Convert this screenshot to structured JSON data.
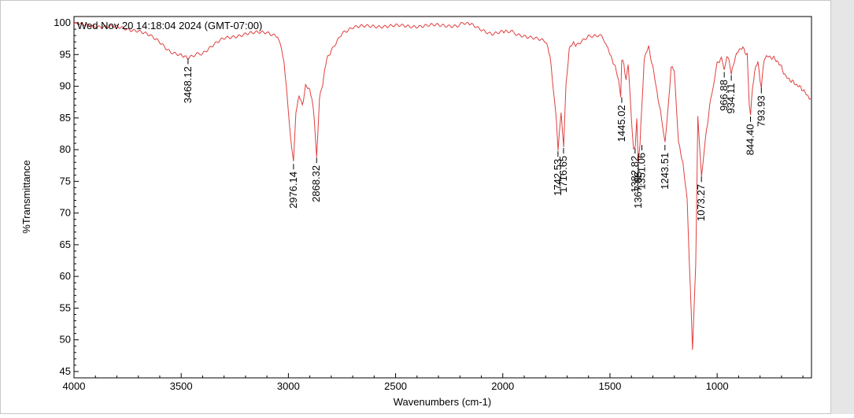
{
  "chart_data": {
    "type": "line",
    "title": "Wed Nov 20 14:18:04 2024 (GMT-07:00)",
    "xlabel": "Wavenumbers (cm-1)",
    "ylabel": "%Transmittance",
    "xlim": [
      4000,
      560
    ],
    "ylim": [
      44,
      101
    ],
    "x_reversed": true,
    "grid": false,
    "line_color": "#e04040",
    "x_ticks": [
      4000,
      3500,
      3000,
      2500,
      2000,
      1500,
      1000
    ],
    "y_ticks": [
      45,
      50,
      55,
      60,
      65,
      70,
      75,
      80,
      85,
      90,
      95,
      100
    ],
    "series": [
      {
        "x": [
          4000,
          3900,
          3800,
          3700,
          3650,
          3600,
          3550,
          3500,
          3468,
          3440,
          3400,
          3350,
          3300,
          3200,
          3100,
          3050,
          3020,
          3000,
          2990,
          2976,
          2965,
          2950,
          2935,
          2920,
          2900,
          2890,
          2880,
          2868,
          2855,
          2840,
          2820,
          2800,
          2750,
          2700,
          2600,
          2500,
          2400,
          2300,
          2200,
          2170,
          2150,
          2100,
          2050,
          2000,
          1980,
          1950,
          1900,
          1850,
          1800,
          1780,
          1760,
          1750,
          1742,
          1735,
          1728,
          1716,
          1705,
          1690,
          1670,
          1650,
          1600,
          1550,
          1520,
          1500,
          1480,
          1460,
          1450,
          1445,
          1435,
          1425,
          1415,
          1400,
          1390,
          1382,
          1375,
          1368,
          1360,
          1351,
          1340,
          1320,
          1300,
          1280,
          1260,
          1243,
          1230,
          1215,
          1200,
          1180,
          1160,
          1140,
          1125,
          1115,
          1100,
          1090,
          1085,
          1073,
          1060,
          1050,
          1030,
          1000,
          980,
          967,
          955,
          945,
          934,
          920,
          900,
          880,
          860,
          850,
          844,
          835,
          820,
          810,
          800,
          794,
          780,
          760,
          740,
          720,
          700,
          680,
          660,
          640,
          620,
          600,
          580,
          560
        ],
        "y": [
          99.8,
          99.5,
          99.3,
          98.8,
          98.0,
          97.0,
          95.5,
          94.8,
          94.6,
          94.8,
          95.3,
          96.5,
          97.5,
          98.3,
          98.5,
          98.0,
          94.0,
          86.0,
          82.0,
          78.0,
          86.0,
          88.5,
          87.0,
          90.0,
          89.5,
          88.0,
          85.0,
          79.0,
          88.0,
          90.5,
          94.5,
          95.5,
          98.5,
          99.3,
          99.5,
          99.5,
          99.5,
          99.6,
          99.6,
          100.2,
          99.7,
          99.0,
          98.3,
          98.5,
          98.9,
          98.4,
          98.0,
          97.5,
          97.0,
          95.0,
          88.0,
          85.0,
          80.0,
          83.0,
          86.0,
          80.5,
          90.0,
          96.0,
          96.8,
          96.5,
          98.0,
          98.1,
          97.0,
          95.0,
          93.5,
          91.0,
          88.5,
          94.0,
          93.5,
          91.0,
          93.5,
          85.0,
          80.0,
          80.5,
          85.0,
          78.0,
          81.0,
          87.0,
          94.5,
          96.2,
          93.0,
          89.0,
          85.0,
          81.0,
          86.0,
          93.0,
          92.5,
          81.0,
          78.0,
          72.0,
          58.0,
          48.5,
          62.0,
          85.0,
          82.0,
          76.0,
          80.0,
          83.0,
          88.0,
          93.5,
          94.5,
          92.5,
          95.0,
          94.0,
          92.0,
          94.0,
          95.8,
          96.0,
          95.0,
          87.0,
          85.5,
          90.0,
          93.0,
          94.0,
          91.0,
          90.0,
          94.5,
          94.7,
          94.5,
          94.0,
          93.0,
          91.5,
          91.0,
          90.5,
          90.0,
          89.5,
          88.5,
          88.0
        ]
      }
    ],
    "annotations": [
      {
        "label": "3468.12",
        "x": 3468.12,
        "y": 94.6
      },
      {
        "label": "2976.14",
        "x": 2976.14,
        "y": 78.0
      },
      {
        "label": "2868.32",
        "x": 2868.32,
        "y": 79.0
      },
      {
        "label": "1742.53",
        "x": 1742.53,
        "y": 80.0
      },
      {
        "label": "1716.65",
        "x": 1716.65,
        "y": 80.5
      },
      {
        "label": "1445.02",
        "x": 1445.02,
        "y": 88.5
      },
      {
        "label": "1382.82",
        "x": 1382.82,
        "y": 80.5
      },
      {
        "label": "1367.85",
        "x": 1367.85,
        "y": 78.0
      },
      {
        "label": "1351.06",
        "x": 1351.06,
        "y": 81.0
      },
      {
        "label": "1243.51",
        "x": 1243.51,
        "y": 81.0
      },
      {
        "label": "1073.27",
        "x": 1073.27,
        "y": 76.0
      },
      {
        "label": "966.88",
        "x": 966.88,
        "y": 92.5
      },
      {
        "label": "934.11",
        "x": 934.11,
        "y": 92.0
      },
      {
        "label": "844.40",
        "x": 844.4,
        "y": 85.5
      },
      {
        "label": "793.93",
        "x": 793.93,
        "y": 90.0
      }
    ]
  }
}
